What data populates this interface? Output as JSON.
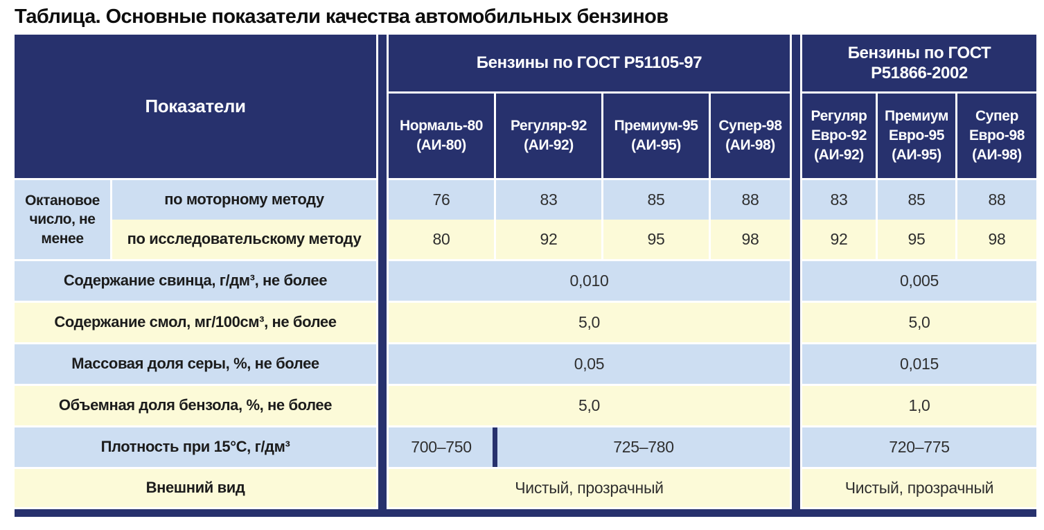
{
  "title": "Таблица. Основные показатели качества автомобильных бензинов",
  "colors": {
    "header_navy": "#27316d",
    "row_blue": "#cddef2",
    "row_yellow": "#fcfad8"
  },
  "table": {
    "indicators_header": "Показатели",
    "gost_r51105": {
      "title": "Бензины по ГОСТ Р51105-97",
      "columns": [
        {
          "name": "Нормаль-80",
          "grade": "(АИ-80)"
        },
        {
          "name": "Регуляр-92",
          "grade": "(АИ-92)"
        },
        {
          "name": "Премиум-95",
          "grade": "(АИ-95)"
        },
        {
          "name": "Супер-98",
          "grade": "(АИ-98)"
        }
      ]
    },
    "gost_r51866": {
      "title_line1": "Бензины по ГОСТ",
      "title_line2": "Р51866-2002",
      "columns": [
        {
          "name": "Регуляр",
          "euro": "Евро-92",
          "grade": "(АИ-92)"
        },
        {
          "name": "Премиум",
          "euro": "Евро-95",
          "grade": "(АИ-95)"
        },
        {
          "name": "Супер",
          "euro": "Евро-98",
          "grade": "(АИ-98)"
        }
      ]
    },
    "rows": {
      "octane": {
        "label": "Октановое число, не менее",
        "motor": {
          "label": "по моторному методу",
          "gost_r51105": [
            "76",
            "83",
            "85",
            "88"
          ],
          "gost_r51866": [
            "83",
            "85",
            "88"
          ]
        },
        "research": {
          "label": "по исследовательскому методу",
          "gost_r51105": [
            "80",
            "92",
            "95",
            "98"
          ],
          "gost_r51866": [
            "92",
            "95",
            "98"
          ]
        }
      },
      "lead": {
        "label": "Содержание свинца, г/дм³, не более",
        "gost_r51105": "0,010",
        "gost_r51866": "0,005"
      },
      "resins": {
        "label": "Содержание смол, мг/100см³, не более",
        "gost_r51105": "5,0",
        "gost_r51866": "5,0"
      },
      "sulfur": {
        "label": "Массовая доля серы, %, не более",
        "gost_r51105": "0,05",
        "gost_r51866": "0,015"
      },
      "benzene": {
        "label": "Объемная доля бензола, %, не более",
        "gost_r51105": "5,0",
        "gost_r51866": "1,0"
      },
      "density": {
        "label": "Плотность при 15°С, г/дм³",
        "normal_80": "700–750",
        "regular_to_super": "725–780",
        "gost_r51866": "720–775"
      },
      "appearance": {
        "label": "Внешний вид",
        "gost_r51105": "Чистый, прозрачный",
        "gost_r51866": "Чистый, прозрачный"
      }
    }
  }
}
